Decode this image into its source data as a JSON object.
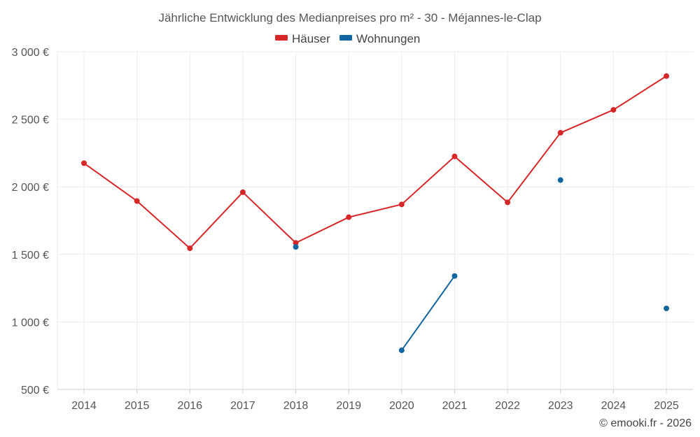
{
  "chart_data": {
    "type": "line",
    "title": "Jährliche Entwicklung des Medianpreises pro m² - 30 - Méjannes-le-Clap",
    "xlabel": "",
    "ylabel": "",
    "categories": [
      "2014",
      "2015",
      "2016",
      "2017",
      "2018",
      "2019",
      "2020",
      "2021",
      "2022",
      "2023",
      "2024",
      "2025"
    ],
    "ylim": [
      500,
      3000
    ],
    "yticks": [
      500,
      1000,
      1500,
      2000,
      2500,
      3000
    ],
    "ytick_labels": [
      "500 €",
      "1 000 €",
      "1 500 €",
      "2 000 €",
      "2 500 €",
      "3 000 €"
    ],
    "grid": true,
    "legend_position": "top-center",
    "series": [
      {
        "name": "Häuser",
        "color": "#d62728",
        "values": [
          2175,
          1895,
          1545,
          1960,
          1585,
          1775,
          1870,
          2225,
          1885,
          2400,
          2570,
          2820
        ]
      },
      {
        "name": "Wohnungen",
        "color": "#1266a0",
        "values": [
          null,
          null,
          null,
          null,
          1555,
          null,
          790,
          1340,
          null,
          2050,
          null,
          1100
        ]
      }
    ],
    "credit": "© emooki.fr - 2026"
  }
}
